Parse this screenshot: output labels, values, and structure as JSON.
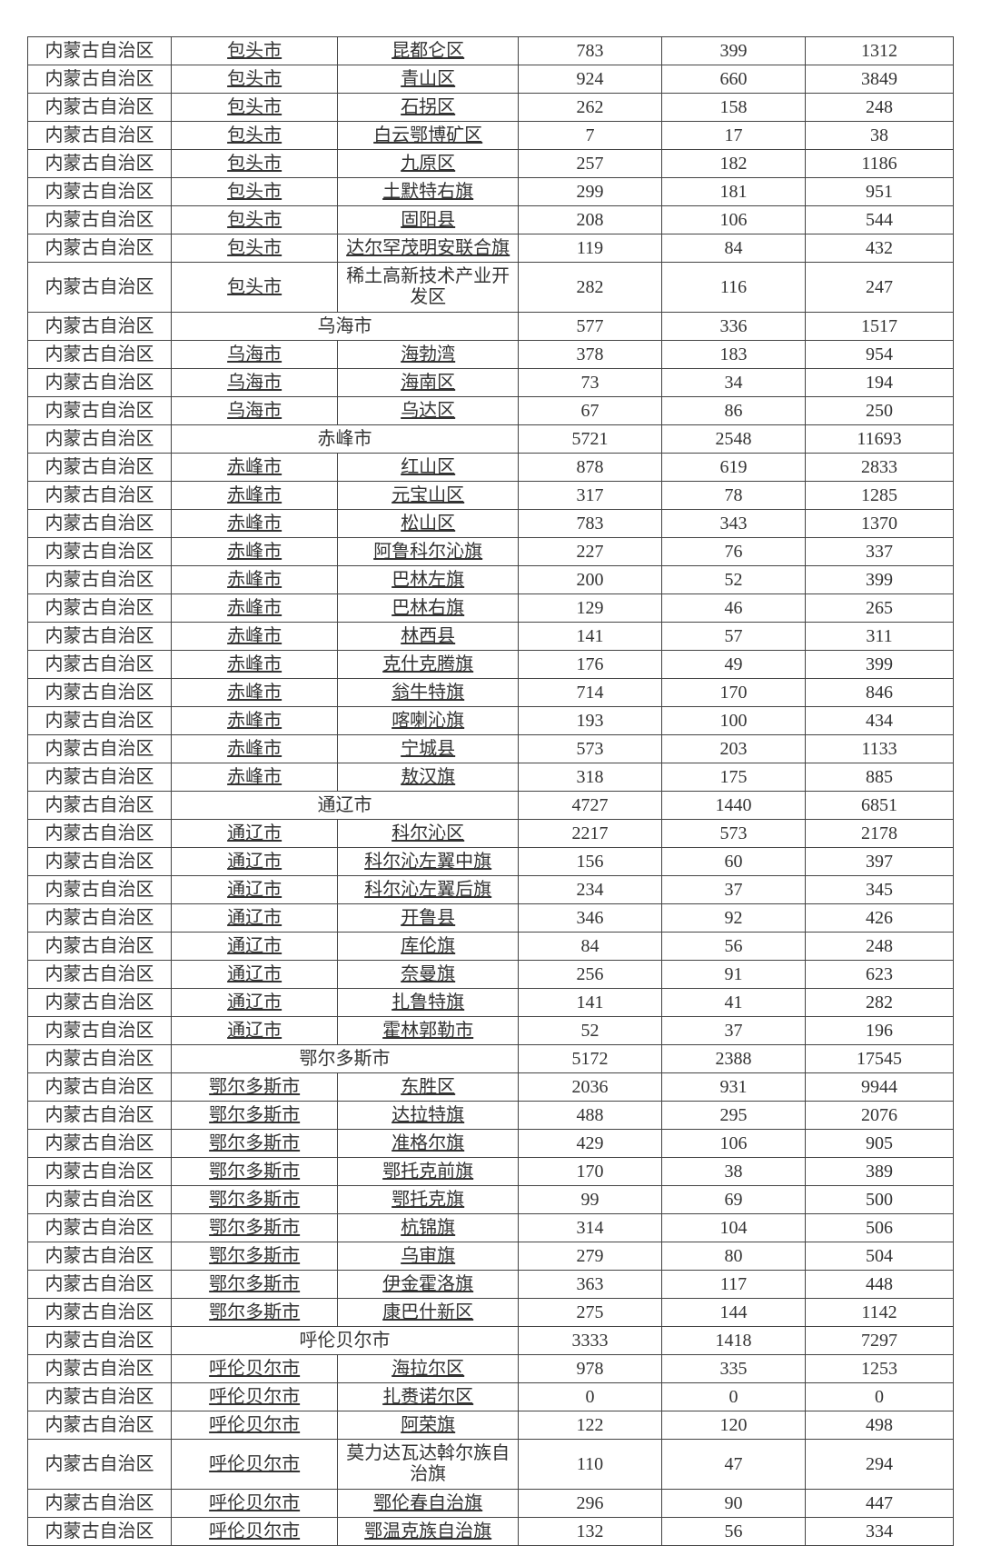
{
  "province": "内蒙古自治区",
  "rows": [
    {
      "city": "包头市",
      "district": "昆都仑区",
      "v1": 783,
      "v2": 399,
      "v3": 1312,
      "cityLink": true,
      "distLink": true
    },
    {
      "city": "包头市",
      "district": "青山区",
      "v1": 924,
      "v2": 660,
      "v3": 3849,
      "cityLink": true,
      "distLink": true
    },
    {
      "city": "包头市",
      "district": "石拐区",
      "v1": 262,
      "v2": 158,
      "v3": 248,
      "cityLink": true,
      "distLink": true
    },
    {
      "city": "包头市",
      "district": "白云鄂博矿区",
      "v1": 7,
      "v2": 17,
      "v3": 38,
      "cityLink": true,
      "distLink": true
    },
    {
      "city": "包头市",
      "district": "九原区",
      "v1": 257,
      "v2": 182,
      "v3": 1186,
      "cityLink": true,
      "distLink": true
    },
    {
      "city": "包头市",
      "district": "土默特右旗",
      "v1": 299,
      "v2": 181,
      "v3": 951,
      "cityLink": true,
      "distLink": true
    },
    {
      "city": "包头市",
      "district": "固阳县",
      "v1": 208,
      "v2": 106,
      "v3": 544,
      "cityLink": true,
      "distLink": true
    },
    {
      "city": "包头市",
      "district": "达尔罕茂明安联合旗",
      "v1": 119,
      "v2": 84,
      "v3": 432,
      "cityLink": true,
      "distLink": true
    },
    {
      "city": "包头市",
      "district": "稀土高新技术产业开发区",
      "v1": 282,
      "v2": 116,
      "v3": 247,
      "cityLink": true,
      "distLink": false,
      "tall": true
    },
    {
      "merged": "乌海市",
      "v1": 577,
      "v2": 336,
      "v3": 1517
    },
    {
      "city": "乌海市",
      "district": "海勃湾",
      "v1": 378,
      "v2": 183,
      "v3": 954,
      "cityLink": true,
      "distLink": true
    },
    {
      "city": "乌海市",
      "district": "海南区",
      "v1": 73,
      "v2": 34,
      "v3": 194,
      "cityLink": true,
      "distLink": true
    },
    {
      "city": "乌海市",
      "district": "乌达区",
      "v1": 67,
      "v2": 86,
      "v3": 250,
      "cityLink": true,
      "distLink": true
    },
    {
      "merged": "赤峰市",
      "v1": 5721,
      "v2": 2548,
      "v3": 11693
    },
    {
      "city": "赤峰市",
      "district": "红山区",
      "v1": 878,
      "v2": 619,
      "v3": 2833,
      "cityLink": true,
      "distLink": true
    },
    {
      "city": "赤峰市",
      "district": "元宝山区",
      "v1": 317,
      "v2": 78,
      "v3": 1285,
      "cityLink": true,
      "distLink": true
    },
    {
      "city": "赤峰市",
      "district": "松山区",
      "v1": 783,
      "v2": 343,
      "v3": 1370,
      "cityLink": true,
      "distLink": true
    },
    {
      "city": "赤峰市",
      "district": "阿鲁科尔沁旗",
      "v1": 227,
      "v2": 76,
      "v3": 337,
      "cityLink": true,
      "distLink": true
    },
    {
      "city": "赤峰市",
      "district": "巴林左旗",
      "v1": 200,
      "v2": 52,
      "v3": 399,
      "cityLink": true,
      "distLink": true
    },
    {
      "city": "赤峰市",
      "district": "巴林右旗",
      "v1": 129,
      "v2": 46,
      "v3": 265,
      "cityLink": true,
      "distLink": true
    },
    {
      "city": "赤峰市",
      "district": "林西县",
      "v1": 141,
      "v2": 57,
      "v3": 311,
      "cityLink": true,
      "distLink": true
    },
    {
      "city": "赤峰市",
      "district": "克什克腾旗",
      "v1": 176,
      "v2": 49,
      "v3": 399,
      "cityLink": true,
      "distLink": true
    },
    {
      "city": "赤峰市",
      "district": "翁牛特旗",
      "v1": 714,
      "v2": 170,
      "v3": 846,
      "cityLink": true,
      "distLink": true
    },
    {
      "city": "赤峰市",
      "district": "喀喇沁旗",
      "v1": 193,
      "v2": 100,
      "v3": 434,
      "cityLink": true,
      "distLink": true
    },
    {
      "city": "赤峰市",
      "district": "宁城县",
      "v1": 573,
      "v2": 203,
      "v3": 1133,
      "cityLink": true,
      "distLink": true
    },
    {
      "city": "赤峰市",
      "district": "敖汉旗",
      "v1": 318,
      "v2": 175,
      "v3": 885,
      "cityLink": true,
      "distLink": true
    },
    {
      "merged": "通辽市",
      "v1": 4727,
      "v2": 1440,
      "v3": 6851
    },
    {
      "city": "通辽市",
      "district": "科尔沁区",
      "v1": 2217,
      "v2": 573,
      "v3": 2178,
      "cityLink": true,
      "distLink": true
    },
    {
      "city": "通辽市",
      "district": "科尔沁左翼中旗",
      "v1": 156,
      "v2": 60,
      "v3": 397,
      "cityLink": true,
      "distLink": true
    },
    {
      "city": "通辽市",
      "district": "科尔沁左翼后旗",
      "v1": 234,
      "v2": 37,
      "v3": 345,
      "cityLink": true,
      "distLink": true
    },
    {
      "city": "通辽市",
      "district": "开鲁县",
      "v1": 346,
      "v2": 92,
      "v3": 426,
      "cityLink": true,
      "distLink": true
    },
    {
      "city": "通辽市",
      "district": "库伦旗",
      "v1": 84,
      "v2": 56,
      "v3": 248,
      "cityLink": true,
      "distLink": true
    },
    {
      "city": "通辽市",
      "district": "奈曼旗",
      "v1": 256,
      "v2": 91,
      "v3": 623,
      "cityLink": true,
      "distLink": true
    },
    {
      "city": "通辽市",
      "district": "扎鲁特旗",
      "v1": 141,
      "v2": 41,
      "v3": 282,
      "cityLink": true,
      "distLink": true
    },
    {
      "city": "通辽市",
      "district": "霍林郭勒市",
      "v1": 52,
      "v2": 37,
      "v3": 196,
      "cityLink": true,
      "distLink": true
    },
    {
      "merged": "鄂尔多斯市",
      "v1": 5172,
      "v2": 2388,
      "v3": 17545
    },
    {
      "city": "鄂尔多斯市",
      "district": "东胜区",
      "v1": 2036,
      "v2": 931,
      "v3": 9944,
      "cityLink": true,
      "distLink": true
    },
    {
      "city": "鄂尔多斯市",
      "district": "达拉特旗",
      "v1": 488,
      "v2": 295,
      "v3": 2076,
      "cityLink": true,
      "distLink": true
    },
    {
      "city": "鄂尔多斯市",
      "district": "准格尔旗",
      "v1": 429,
      "v2": 106,
      "v3": 905,
      "cityLink": true,
      "distLink": true
    },
    {
      "city": "鄂尔多斯市",
      "district": "鄂托克前旗",
      "v1": 170,
      "v2": 38,
      "v3": 389,
      "cityLink": true,
      "distLink": true
    },
    {
      "city": "鄂尔多斯市",
      "district": "鄂托克旗",
      "v1": 99,
      "v2": 69,
      "v3": 500,
      "cityLink": true,
      "distLink": true
    },
    {
      "city": "鄂尔多斯市",
      "district": "杭锦旗",
      "v1": 314,
      "v2": 104,
      "v3": 506,
      "cityLink": true,
      "distLink": true
    },
    {
      "city": "鄂尔多斯市",
      "district": "乌审旗",
      "v1": 279,
      "v2": 80,
      "v3": 504,
      "cityLink": true,
      "distLink": true
    },
    {
      "city": "鄂尔多斯市",
      "district": "伊金霍洛旗",
      "v1": 363,
      "v2": 117,
      "v3": 448,
      "cityLink": true,
      "distLink": true
    },
    {
      "city": "鄂尔多斯市",
      "district": "康巴什新区",
      "v1": 275,
      "v2": 144,
      "v3": 1142,
      "cityLink": true,
      "distLink": true
    },
    {
      "merged": "呼伦贝尔市",
      "v1": 3333,
      "v2": 1418,
      "v3": 7297
    },
    {
      "city": "呼伦贝尔市",
      "district": "海拉尔区",
      "v1": 978,
      "v2": 335,
      "v3": 1253,
      "cityLink": true,
      "distLink": true
    },
    {
      "city": "呼伦贝尔市",
      "district": "扎赉诺尔区",
      "v1": 0,
      "v2": 0,
      "v3": 0,
      "cityLink": true,
      "distLink": true
    },
    {
      "city": "呼伦贝尔市",
      "district": "阿荣旗",
      "v1": 122,
      "v2": 120,
      "v3": 498,
      "cityLink": true,
      "distLink": true
    },
    {
      "city": "呼伦贝尔市",
      "district": "莫力达瓦达斡尔族自治旗",
      "v1": 110,
      "v2": 47,
      "v3": 294,
      "cityLink": true,
      "distLink": false,
      "tall": true
    },
    {
      "city": "呼伦贝尔市",
      "district": "鄂伦春自治旗",
      "v1": 296,
      "v2": 90,
      "v3": 447,
      "cityLink": true,
      "distLink": true
    },
    {
      "city": "呼伦贝尔市",
      "district": "鄂温克族自治旗",
      "v1": 132,
      "v2": 56,
      "v3": 334,
      "cityLink": true,
      "distLink": true
    }
  ]
}
